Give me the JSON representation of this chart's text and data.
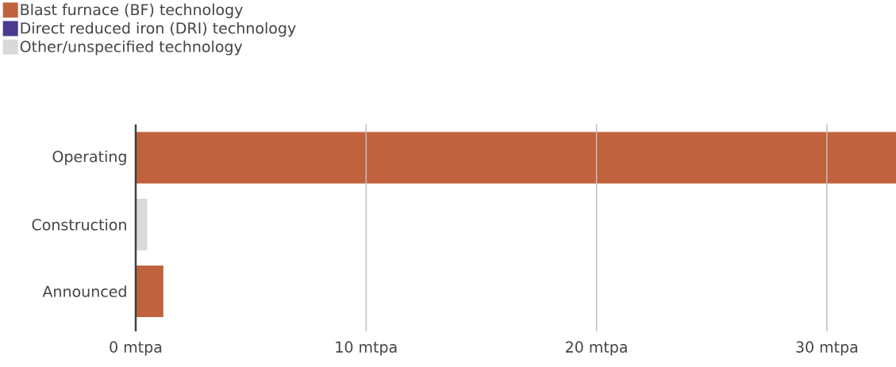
{
  "chart_data": {
    "type": "bar",
    "orientation": "horizontal",
    "stacked": true,
    "categories": [
      "Operating",
      "Construction",
      "Announced"
    ],
    "series": [
      {
        "name": "Blast furnace (BF) technology",
        "color": "#c0623e",
        "values": [
          33.0,
          0,
          1.2
        ]
      },
      {
        "name": "Direct reduced iron (DRI) technology",
        "color": "#4b3a8f",
        "values": [
          0,
          0,
          0
        ]
      },
      {
        "name": "Other/unspecified technology",
        "color": "#d9d9d9",
        "values": [
          0,
          0.5,
          0
        ]
      }
    ],
    "xlim": [
      0,
      33
    ],
    "xticks": [
      {
        "value": 0,
        "label": "0 mtpa"
      },
      {
        "value": 10,
        "label": "10 mtpa"
      },
      {
        "value": 20,
        "label": "20 mtpa"
      },
      {
        "value": 30,
        "label": "30 mtpa"
      }
    ],
    "grid": "x",
    "legend": "top left"
  }
}
